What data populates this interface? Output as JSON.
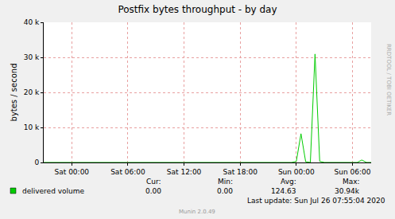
{
  "chart_data": {
    "type": "line",
    "title": "Postfix bytes throughput - by day",
    "y_label": "bytes / second",
    "categories": [
      null,
      null,
      null,
      null,
      null,
      null,
      "Sat 00:00",
      null,
      null,
      null,
      null,
      null,
      null,
      null,
      null,
      null,
      null,
      null,
      "Sat 06:00",
      null,
      null,
      null,
      null,
      null,
      null,
      null,
      null,
      null,
      null,
      null,
      "Sat 12:00",
      null,
      null,
      null,
      null,
      null,
      null,
      null,
      null,
      null,
      null,
      null,
      "Sat 18:00",
      null,
      null,
      null,
      null,
      null,
      null,
      null,
      null,
      null,
      null,
      null,
      "Sun 00:00",
      null,
      null,
      null,
      null,
      null,
      null,
      null,
      null,
      null,
      null,
      null,
      "Sun 06:00",
      null,
      null,
      null,
      null
    ],
    "series": [
      {
        "name": "delivered volume",
        "color": "#00cc00",
        "values": [
          0,
          0,
          0,
          0,
          0,
          0,
          0,
          0,
          0,
          0,
          0,
          0,
          0,
          0,
          0,
          0,
          0,
          0,
          0,
          0,
          0,
          0,
          0,
          0,
          0,
          0,
          0,
          0,
          0,
          0,
          0,
          0,
          0,
          0,
          0,
          0,
          0,
          0,
          0,
          0,
          0,
          0,
          0,
          0,
          0,
          0,
          0,
          0,
          0,
          0,
          0,
          0,
          0,
          0,
          300,
          8200,
          200,
          0,
          30940,
          300,
          0,
          0,
          0,
          0,
          0,
          0,
          0,
          0,
          700,
          0,
          0
        ]
      }
    ],
    "ylim": [
      0,
      40000
    ],
    "yticks": [
      0,
      {
        "value": 10000,
        "label": "10 k"
      },
      {
        "value": 20000,
        "label": "20 k"
      },
      {
        "value": 30000,
        "label": "30 k"
      },
      {
        "value": 40000,
        "label": "40 k"
      }
    ],
    "grid": true,
    "annotations": {
      "stats_labels": [
        "Cur:",
        "Min:",
        "Avg:",
        "Max:"
      ],
      "stats_values": [
        "0.00",
        "0.00",
        "124.63",
        "30.94k"
      ],
      "last_update": "Last update: Sun Jul 26 07:55:04 2020",
      "credit": "Munin 2.0.49",
      "watermark": "RRDTOOL / TOBI OETIKER"
    }
  }
}
